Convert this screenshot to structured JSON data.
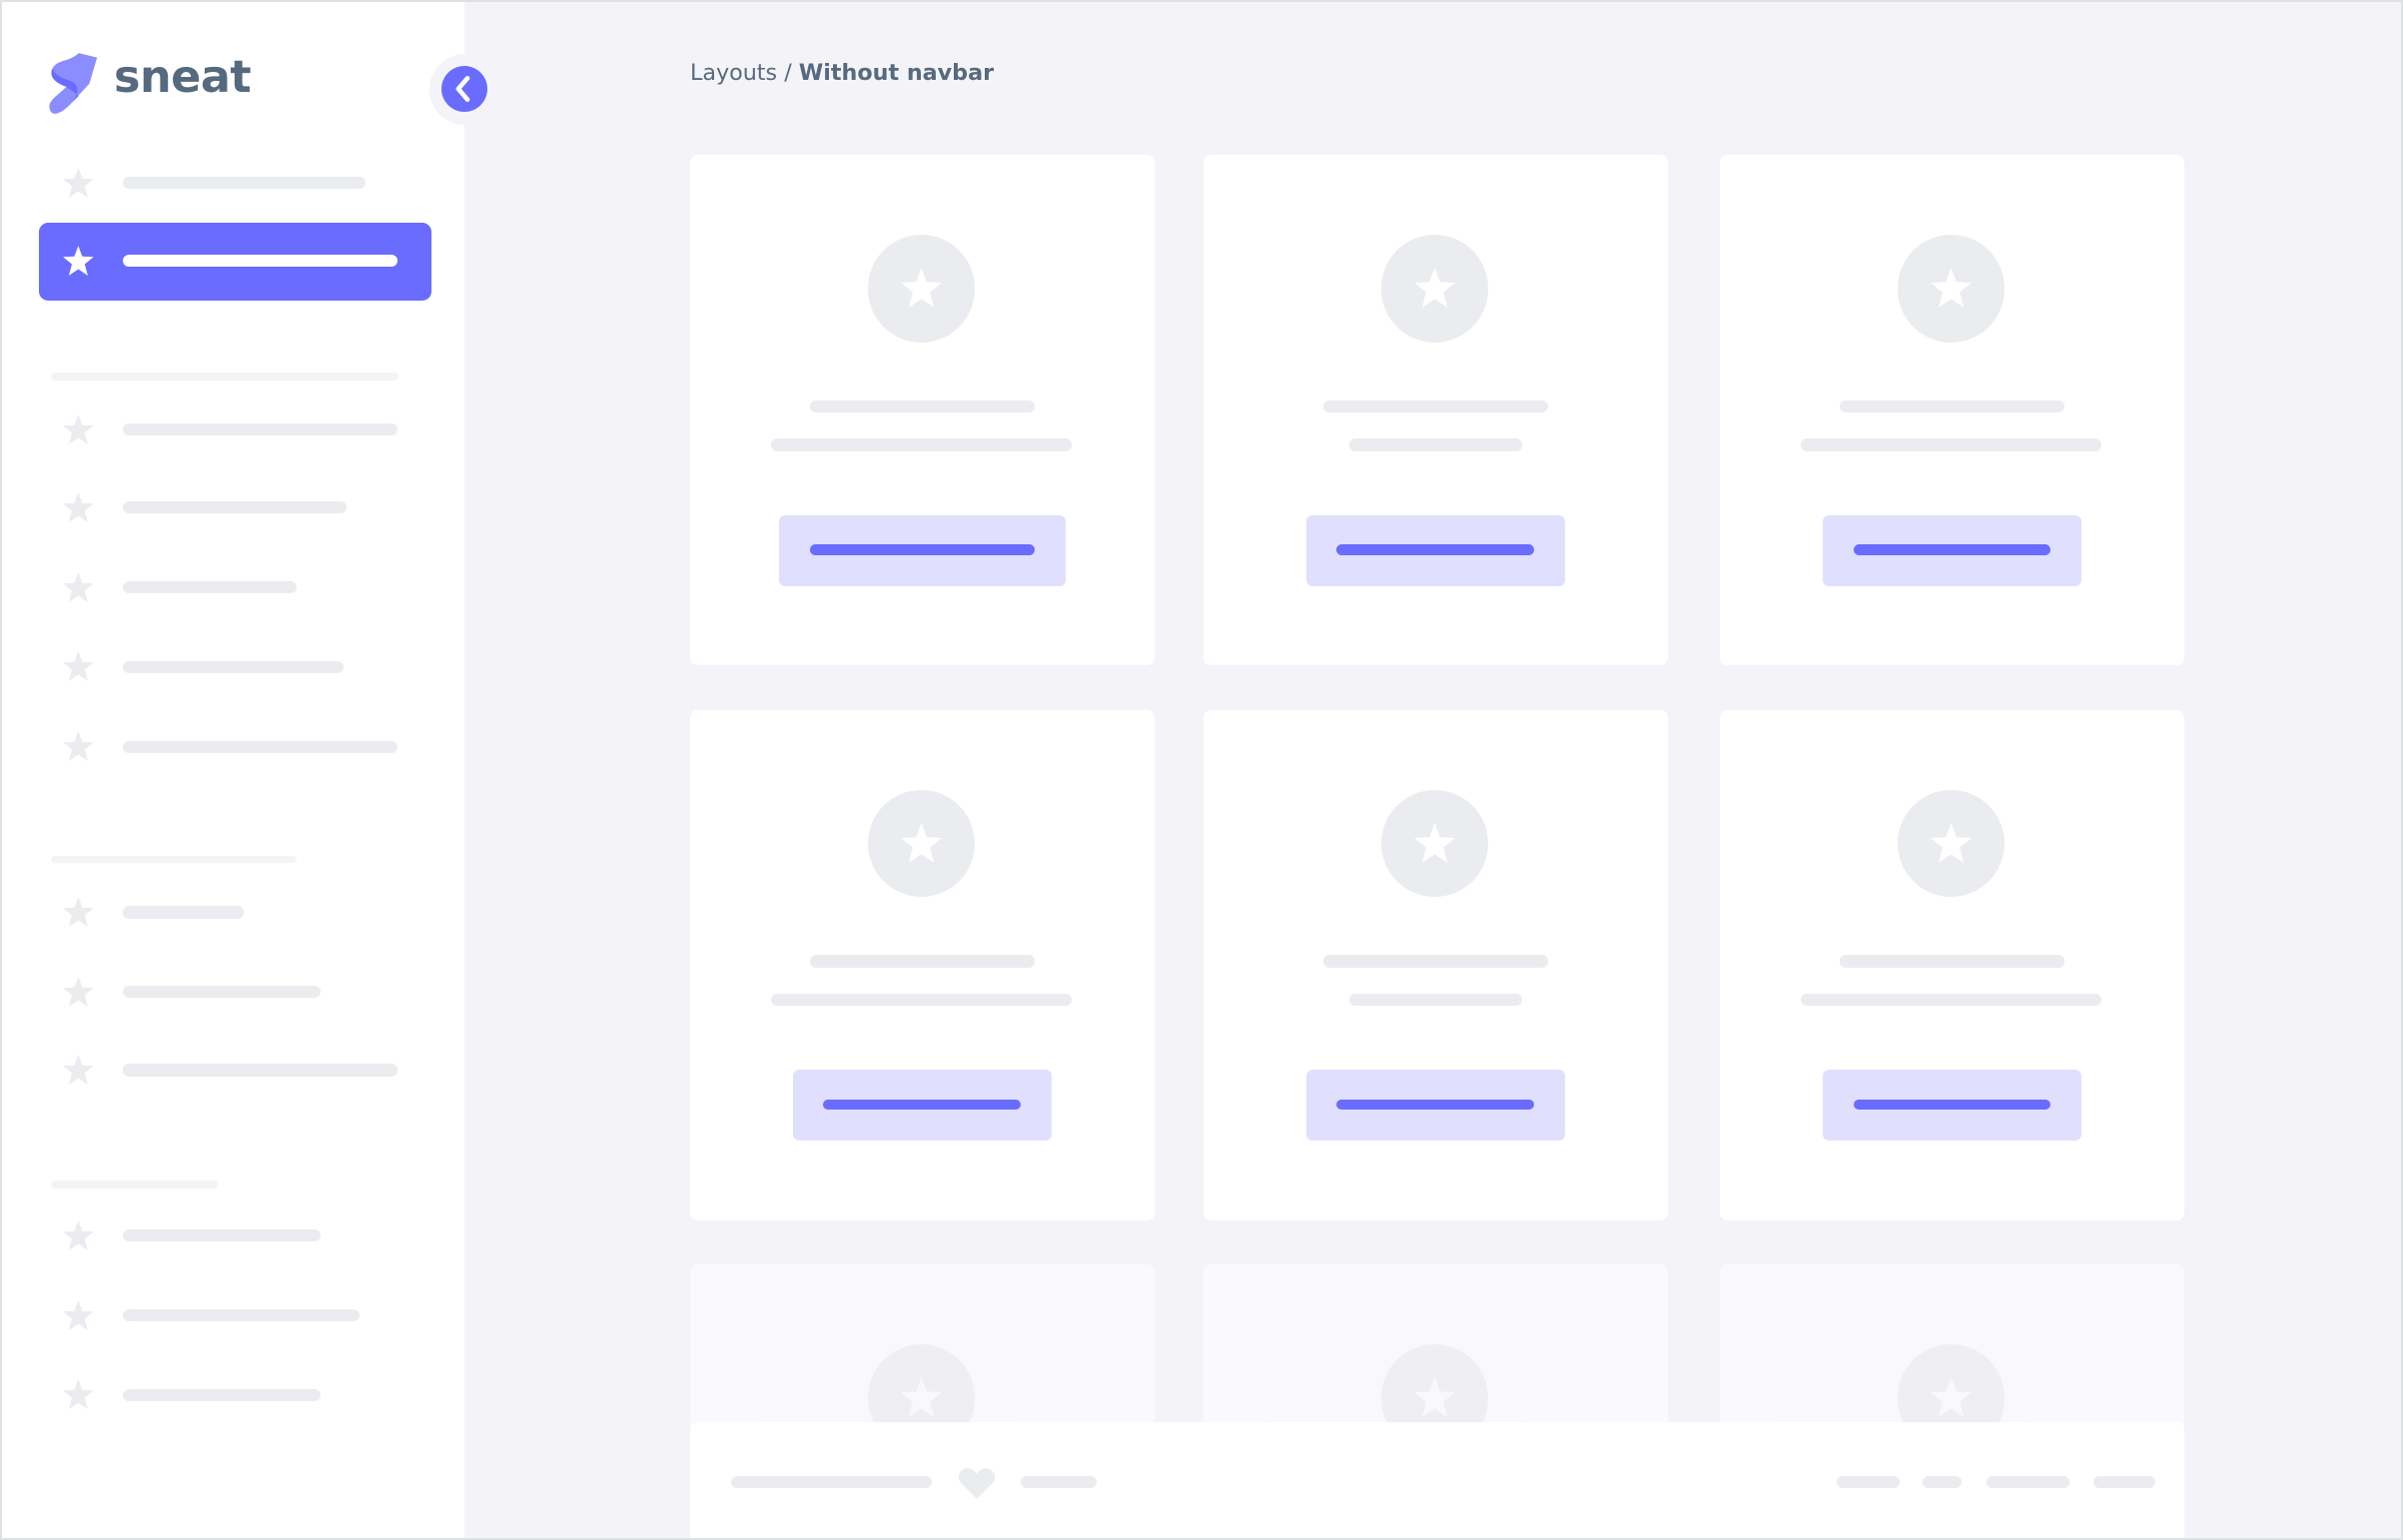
{
  "brand": {
    "name": "sneat",
    "logo_color": "#696cff"
  },
  "breadcrumb": {
    "parent": "Layouts",
    "separator": "/",
    "current": "Without navbar"
  },
  "colors": {
    "accent": "#696cff",
    "accent_light": "#e0e0fe",
    "background": "#f4f4f8",
    "placeholder": "#ebecef",
    "text": "#566a7f"
  },
  "sidebar": {
    "active_index": 1,
    "icon": "star-icon",
    "toggle_icon": "chevron-left-icon"
  },
  "footer": {
    "icon": "heart-icon"
  }
}
